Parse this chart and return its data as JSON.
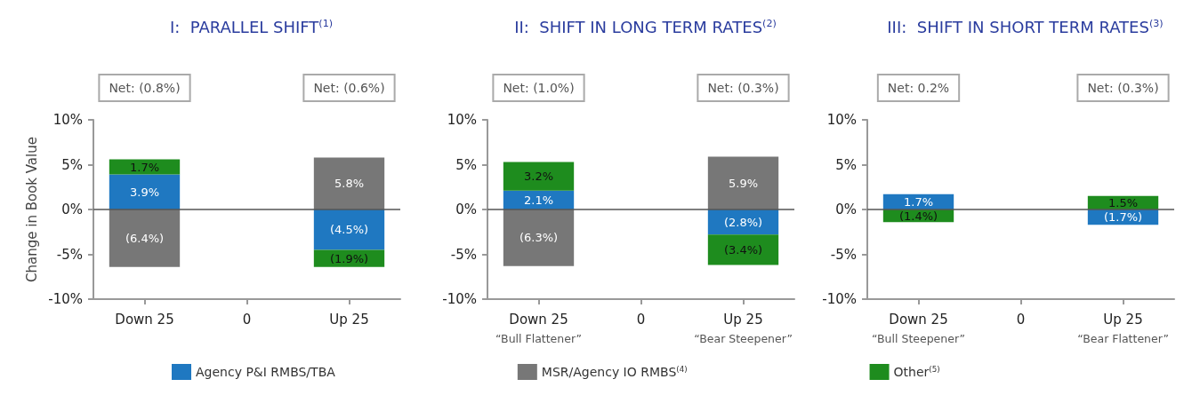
{
  "chart_data": [
    {
      "type": "bar",
      "title": "I:  PARALLEL SHIFT$^{(1)}$",
      "ylabel": "Change in Book Value",
      "categories": [
        "Down 25",
        "0",
        "Up 25"
      ],
      "stacked": true,
      "legend": "bottom",
      "grid": false,
      "ylim": [
        -10,
        10
      ],
      "yticks": [
        {
          "value": -10,
          "label": "-10%"
        },
        {
          "value": -5,
          "label": "-5%"
        },
        {
          "value": 0,
          "label": "0%"
        },
        {
          "value": 5,
          "label": "5%"
        },
        {
          "value": 10,
          "label": "10%"
        }
      ],
      "ref_lines": [
        {
          "axis": "y",
          "value": 0,
          "color": "#555555"
        }
      ],
      "annotations": [
        "Net: (0.8%)",
        "Net: (0.6%)"
      ],
      "series": [
        {
          "name": "Agency P&I RMBS/TBA",
          "color": "#1f78c1",
          "values": [
            3.9,
            null,
            -4.5
          ],
          "value_labels": [
            "3.9%",
            null,
            "(4.5%)"
          ]
        },
        {
          "name": "MSR/Agency IO RMBS$^{(4)}$",
          "color": "#777777",
          "values": [
            -6.4,
            null,
            5.8
          ],
          "value_labels": [
            "(6.4%)",
            null,
            "5.8%"
          ]
        },
        {
          "name": "Other$^{(5)}$",
          "color": "#1e8c1e",
          "values": [
            1.7,
            null,
            -1.9
          ],
          "value_labels": [
            "1.7%",
            null,
            "(1.9%)"
          ]
        }
      ]
    },
    {
      "type": "bar",
      "title": "II:  SHIFT IN LONG TERM RATES$^{(2)}$",
      "categories": [
        "Down 25\n“Bull Flattener”",
        "0",
        "Up 25\n“Bear Steepener”"
      ],
      "stacked": true,
      "grid": false,
      "ylim": [
        -10,
        10
      ],
      "yticks": [
        {
          "value": -10,
          "label": "-10%"
        },
        {
          "value": -5,
          "label": "-5%"
        },
        {
          "value": 0,
          "label": "0%"
        },
        {
          "value": 5,
          "label": "5%"
        },
        {
          "value": 10,
          "label": "10%"
        }
      ],
      "ref_lines": [
        {
          "axis": "y",
          "value": 0,
          "color": "#555555"
        }
      ],
      "annotations": [
        "Net: (1.0%)",
        "Net: (0.3%)"
      ],
      "series": [
        {
          "color": "#1f78c1",
          "values": [
            2.1,
            null,
            -2.8
          ],
          "value_labels": [
            "2.1%",
            null,
            "(2.8%)"
          ]
        },
        {
          "color": "#777777",
          "values": [
            -6.3,
            null,
            5.9
          ],
          "value_labels": [
            "(6.3%)",
            null,
            "5.9%"
          ]
        },
        {
          "color": "#1e8c1e",
          "values": [
            3.2,
            null,
            -3.4
          ],
          "value_labels": [
            "3.2%",
            null,
            "(3.4%)"
          ]
        }
      ]
    },
    {
      "type": "bar",
      "title": "III:  SHIFT IN SHORT TERM RATES$^{(3)}$",
      "categories": [
        "Down 25\n“Bull Steepener”",
        "0",
        "Up 25\n“Bear Flattener”"
      ],
      "stacked": true,
      "grid": false,
      "ylim": [
        -10,
        10
      ],
      "yticks": [
        {
          "value": -10,
          "label": "-10%"
        },
        {
          "value": -5,
          "label": "-5%"
        },
        {
          "value": 0,
          "label": "0%"
        },
        {
          "value": 5,
          "label": "5%"
        },
        {
          "value": 10,
          "label": "10%"
        }
      ],
      "ref_lines": [
        {
          "axis": "y",
          "value": 0,
          "color": "#555555"
        }
      ],
      "annotations": [
        "Net: 0.2%",
        "Net: (0.3%)"
      ],
      "series": [
        {
          "color": "#1f78c1",
          "values": [
            1.7,
            null,
            -1.7
          ],
          "value_labels": [
            "1.7%",
            null,
            "(1.7%)"
          ]
        },
        {
          "color": "#1e8c1e",
          "values": [
            -1.4,
            null,
            1.5
          ],
          "value_labels": [
            "(1.4%)",
            null,
            "1.5%"
          ]
        }
      ]
    }
  ]
}
